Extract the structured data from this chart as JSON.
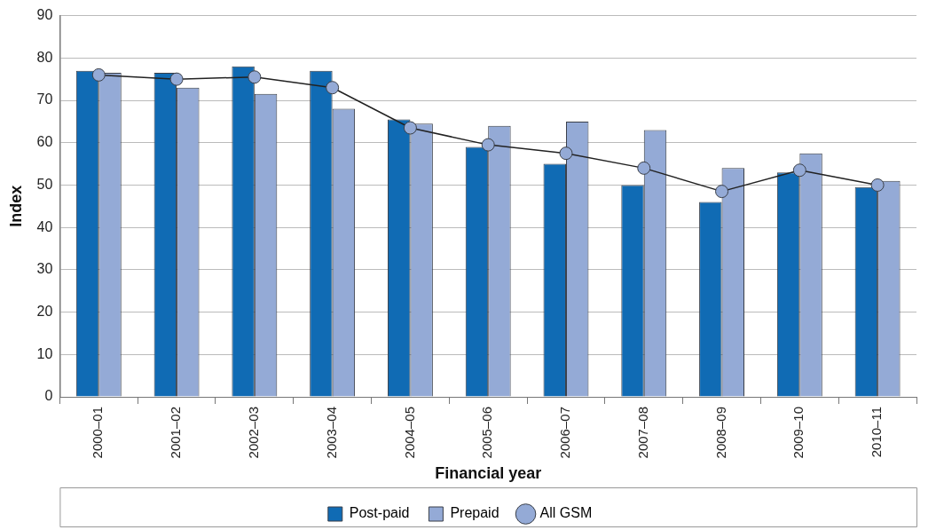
{
  "chart_data": {
    "type": "bar",
    "xlabel": "Financial year",
    "ylabel": "Index",
    "categories": [
      "2000–01",
      "2001–02",
      "2002–03",
      "2003–04",
      "2004–05",
      "2005–06",
      "2006–07",
      "2007–08",
      "2008–09",
      "2009–10",
      "2010–11"
    ],
    "series": [
      {
        "name": "Post-paid",
        "color": "#106bb4",
        "values": [
          77,
          76.5,
          78,
          77,
          65.5,
          59,
          55,
          50,
          46,
          53,
          49.5
        ]
      },
      {
        "name": "Prepaid",
        "color": "#94aad6",
        "values": [
          76.5,
          73,
          71.5,
          68,
          64.5,
          64,
          65,
          63,
          54,
          57.5,
          51
        ]
      },
      {
        "name": "All GSM",
        "type": "line",
        "color": "#94aad6",
        "values": [
          76,
          75,
          75.5,
          73,
          63.5,
          59.5,
          57.5,
          54,
          48.5,
          53.5,
          50
        ]
      }
    ],
    "ylim": [
      0,
      90
    ],
    "yticks": [
      0,
      10,
      20,
      30,
      40,
      50,
      60,
      70,
      80,
      90
    ],
    "grid": "y",
    "legend": "bottom",
    "marker": "circle"
  }
}
